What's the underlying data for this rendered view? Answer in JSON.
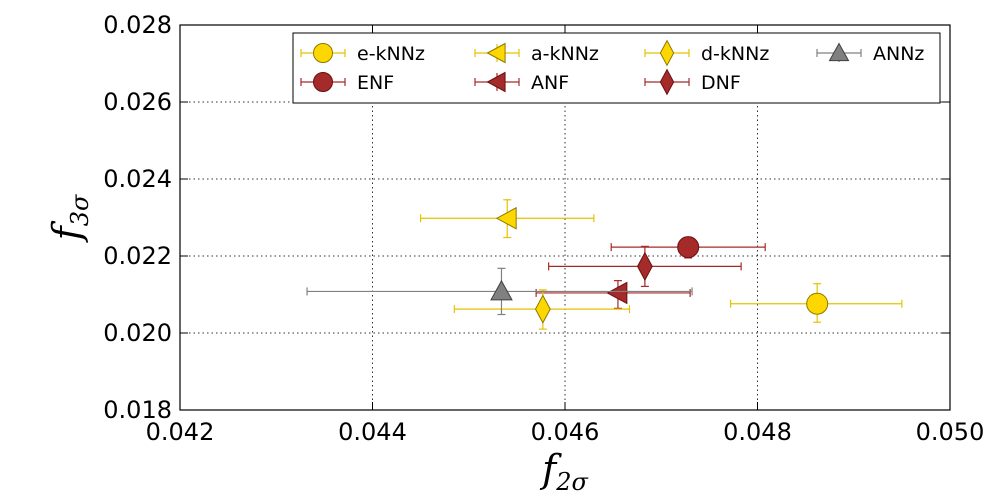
{
  "chart_data": {
    "type": "scatter",
    "xlabel": {
      "main": "f",
      "sub": "2σ"
    },
    "ylabel": {
      "main": "f",
      "sub": "3σ"
    },
    "xlim": [
      0.042,
      0.05
    ],
    "ylim": [
      0.018,
      0.028
    ],
    "xticks": [
      "0.042",
      "0.044",
      "0.046",
      "0.048",
      "0.050"
    ],
    "yticks": [
      "0.018",
      "0.020",
      "0.022",
      "0.024",
      "0.026",
      "0.028"
    ],
    "grid": true,
    "legend_position": "top-right",
    "series": [
      {
        "name": "e-kNNz",
        "marker": "circle",
        "color": "#ffd700",
        "edge": "#8a7a00",
        "x": 0.04862,
        "y": 0.02076,
        "xerr": [
          0.0009,
          0.00088
        ],
        "yerr": [
          0.00048,
          0.00052
        ]
      },
      {
        "name": "ENF",
        "marker": "circle",
        "color": "#a52a2a",
        "edge": "#6a1010",
        "x": 0.04728,
        "y": 0.02223,
        "xerr": [
          0.0008,
          0.0008
        ],
        "yerr": [
          0.00028,
          0.00025
        ]
      },
      {
        "name": "a-kNNz",
        "marker": "triangle-left",
        "color": "#ffd700",
        "edge": "#8a7a00",
        "x": 0.0454,
        "y": 0.02298,
        "xerr": [
          0.0009,
          0.0009
        ],
        "yerr": [
          0.0005,
          0.00048
        ]
      },
      {
        "name": "ANF",
        "marker": "triangle-left",
        "color": "#a52a2a",
        "edge": "#6a1010",
        "x": 0.04655,
        "y": 0.02104,
        "xerr": [
          0.00085,
          0.00075
        ],
        "yerr": [
          0.0004,
          0.00032
        ]
      },
      {
        "name": "d-kNNz",
        "marker": "diamond",
        "color": "#ffd700",
        "edge": "#8a7a00",
        "x": 0.04577,
        "y": 0.02062,
        "xerr": [
          0.00092,
          0.0009
        ],
        "yerr": [
          0.00052,
          0.0005
        ]
      },
      {
        "name": "DNF",
        "marker": "diamond",
        "color": "#a52a2a",
        "edge": "#6a1010",
        "x": 0.04683,
        "y": 0.02173,
        "xerr": [
          0.001,
          0.001
        ],
        "yerr": [
          0.00052,
          0.00052
        ]
      },
      {
        "name": "ANNz",
        "marker": "triangle-up",
        "color": "#808080",
        "edge": "#404040",
        "x": 0.04534,
        "y": 0.02108,
        "xerr": [
          0.00202,
          0.00198
        ],
        "yerr": [
          0.0006,
          0.0006
        ]
      }
    ]
  }
}
